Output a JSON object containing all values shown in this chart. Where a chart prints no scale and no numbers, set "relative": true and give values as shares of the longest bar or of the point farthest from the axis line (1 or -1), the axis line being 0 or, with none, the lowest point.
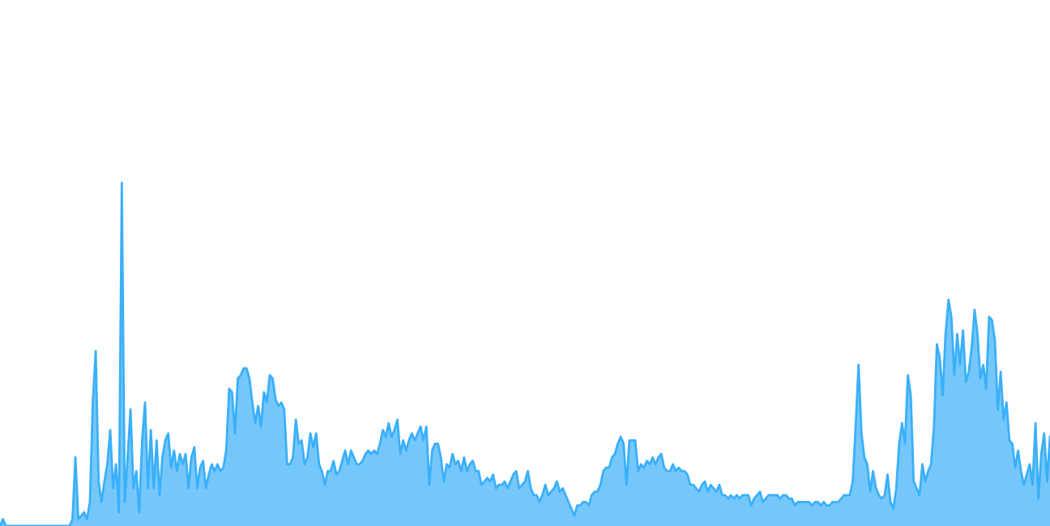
{
  "chart_data": {
    "type": "area",
    "relative": true,
    "categories": [
      null,
      null,
      null,
      null,
      null,
      null,
      null,
      null,
      null,
      null,
      null,
      null,
      null,
      null,
      null,
      null,
      null,
      null,
      null,
      null,
      null,
      null,
      null,
      null,
      null,
      null,
      null,
      null,
      null,
      null,
      null,
      null,
      null,
      null,
      null,
      null,
      null,
      null,
      null,
      null,
      null,
      null,
      null,
      null,
      null,
      null,
      null,
      null,
      null,
      null,
      null,
      null,
      null,
      null,
      null,
      null,
      null,
      null,
      null,
      null,
      null,
      null,
      null,
      null,
      null,
      null,
      null,
      null,
      null,
      null,
      null,
      null,
      null,
      null,
      null,
      null,
      null,
      null,
      null,
      null,
      null,
      null,
      null,
      null,
      null,
      null,
      null,
      null,
      null,
      null,
      null,
      null,
      null,
      null,
      null,
      null,
      null,
      null,
      null,
      null,
      null,
      null,
      null,
      null,
      null,
      null,
      null,
      null,
      null,
      null,
      null,
      null,
      null,
      null,
      null,
      null,
      null,
      null,
      null,
      null,
      null,
      null,
      null,
      null,
      null,
      null,
      null,
      null,
      null,
      null,
      null,
      null,
      null,
      null,
      null,
      null,
      null,
      null,
      null,
      null,
      null,
      null,
      null,
      null,
      null,
      null,
      null,
      null,
      null,
      null,
      null,
      null,
      null,
      null,
      null,
      null,
      null,
      null,
      null,
      null,
      null,
      null,
      null,
      null,
      null,
      null,
      null,
      null,
      null,
      null,
      null,
      null,
      null,
      null,
      null,
      null,
      null,
      null,
      null,
      null,
      null,
      null,
      null,
      null,
      null,
      null,
      null,
      null,
      null,
      null,
      null,
      null,
      null,
      null,
      null,
      null,
      null,
      null,
      null,
      null,
      null,
      null,
      null,
      null,
      null,
      null,
      null,
      null,
      null,
      null,
      null,
      null,
      null,
      null,
      null,
      null,
      null,
      null,
      null,
      null,
      null,
      null,
      null,
      null,
      null,
      null,
      null,
      null,
      null,
      null,
      null,
      null,
      null,
      null,
      null,
      null,
      null,
      null,
      null,
      null,
      null,
      null,
      null,
      null,
      null,
      null,
      null,
      null,
      null,
      null,
      null,
      null,
      null,
      null,
      null,
      null,
      null,
      null,
      null,
      null,
      null,
      null,
      null,
      null,
      null,
      null,
      null,
      null,
      null,
      null,
      null,
      null,
      null,
      null,
      null,
      null,
      null,
      null,
      null,
      null,
      null,
      null,
      null,
      null,
      null,
      null,
      null,
      null,
      null,
      null,
      null,
      null,
      null,
      null,
      null,
      null,
      null,
      null,
      null,
      null,
      null,
      null,
      null,
      null,
      null,
      null,
      null,
      null,
      null,
      null,
      null,
      null,
      null,
      null,
      null,
      null,
      null,
      null,
      null,
      null,
      null,
      null,
      null,
      null,
      null,
      null,
      null,
      null,
      null,
      null,
      null,
      null,
      null,
      null,
      null,
      null,
      null,
      null,
      null,
      null,
      null,
      null,
      null,
      null,
      null,
      null,
      null,
      null,
      null,
      null,
      null,
      null,
      null,
      null,
      null,
      null,
      null,
      null,
      null,
      null,
      null,
      null,
      null
    ],
    "series": [
      {
        "color": "#3aaffa",
        "values": [
          0,
          0.02,
          0,
          0,
          0,
          0,
          0,
          0,
          0,
          0,
          0,
          0,
          0,
          0,
          0,
          0,
          0,
          0,
          0,
          0,
          0,
          0,
          0,
          0,
          0,
          0.02,
          0.2,
          0.02,
          0.03,
          0.04,
          0.02,
          0.07,
          0.36,
          0.51,
          0.13,
          0.07,
          0.13,
          0.18,
          0.28,
          0.11,
          0.18,
          0.04,
          1,
          0.07,
          0.2,
          0.34,
          0.11,
          0.16,
          0.04,
          0.25,
          0.36,
          0.11,
          0.28,
          0.11,
          0.25,
          0.09,
          0.2,
          0.25,
          0.27,
          0.17,
          0.22,
          0.16,
          0.21,
          0.18,
          0.21,
          0.11,
          0.2,
          0.23,
          0.11,
          0.17,
          0.19,
          0.11,
          0.15,
          0.18,
          0.16,
          0.18,
          0.16,
          0.17,
          0.22,
          0.4,
          0.39,
          0.27,
          0.43,
          0.44,
          0.46,
          0.46,
          0.43,
          0.36,
          0.3,
          0.35,
          0.29,
          0.39,
          0.36,
          0.44,
          0.43,
          0.37,
          0.35,
          0.36,
          0.34,
          0.18,
          0.18,
          0.2,
          0.31,
          0.24,
          0.25,
          0.18,
          0.2,
          0.27,
          0.23,
          0.27,
          0.18,
          0.16,
          0.12,
          0.16,
          0.16,
          0.19,
          0.15,
          0.16,
          0.19,
          0.22,
          0.18,
          0.22,
          0.2,
          0.18,
          0.18,
          0.19,
          0.21,
          0.22,
          0.21,
          0.22,
          0.21,
          0.24,
          0.28,
          0.26,
          0.3,
          0.26,
          0.28,
          0.31,
          0.21,
          0.25,
          0.22,
          0.25,
          0.27,
          0.25,
          0.27,
          0.29,
          0.25,
          0.29,
          0.12,
          0.22,
          0.24,
          0.24,
          0.2,
          0.13,
          0.18,
          0.17,
          0.21,
          0.18,
          0.19,
          0.16,
          0.2,
          0.16,
          0.18,
          0.19,
          0.16,
          0.16,
          0.12,
          0.13,
          0.14,
          0.13,
          0.15,
          0.11,
          0.12,
          0.12,
          0.13,
          0.11,
          0.13,
          0.15,
          0.16,
          0.11,
          0.12,
          0.13,
          0.16,
          0.11,
          0.09,
          0.09,
          0.07,
          0.09,
          0.12,
          0.09,
          0.1,
          0.11,
          0.13,
          0.1,
          0.11,
          0.09,
          0.07,
          0.05,
          0.03,
          0.06,
          0.06,
          0.07,
          0.07,
          0.06,
          0.09,
          0.1,
          0.1,
          0.12,
          0.16,
          0.17,
          0.17,
          0.2,
          0.21,
          0.24,
          0.26,
          0.24,
          0.12,
          0.25,
          0.25,
          0.25,
          0.16,
          0.18,
          0.17,
          0.19,
          0.18,
          0.2,
          0.18,
          0.2,
          0.21,
          0.17,
          0.16,
          0.16,
          0.18,
          0.16,
          0.17,
          0.16,
          0.16,
          0.15,
          0.12,
          0.12,
          0.11,
          0.1,
          0.12,
          0.13,
          0.1,
          0.12,
          0.11,
          0.1,
          0.12,
          0.09,
          0.09,
          0.08,
          0.09,
          0.08,
          0.09,
          0.08,
          0.09,
          0.09,
          0.09,
          0.06,
          0.08,
          0.09,
          0.1,
          0.07,
          0.08,
          0.09,
          0.09,
          0.09,
          0.09,
          0.08,
          0.09,
          0.09,
          0.08,
          0.08,
          0.06,
          0.07,
          0.07,
          0.07,
          0.07,
          0.07,
          0.06,
          0.07,
          0.07,
          0.06,
          0.07,
          0.06,
          0.06,
          0.07,
          0.07,
          0.07,
          0.08,
          0.09,
          0.09,
          0.09,
          0.13,
          0.29,
          0.47,
          0.27,
          0.2,
          0.18,
          0.1,
          0.16,
          0.11,
          0.09,
          0.08,
          0.09,
          0.15,
          0.07,
          0.05,
          0.11,
          0.24,
          0.3,
          0.24,
          0.44,
          0.38,
          0.13,
          0.11,
          0.09,
          0.18,
          0.13,
          0.16,
          0.18,
          0.29,
          0.53,
          0.49,
          0.38,
          0.56,
          0.66,
          0.61,
          0.44,
          0.56,
          0.47,
          0.57,
          0.42,
          0.45,
          0.52,
          0.63,
          0.56,
          0.43,
          0.47,
          0.4,
          0.61,
          0.6,
          0.54,
          0.34,
          0.45,
          0.31,
          0.36,
          0.25,
          0.24,
          0.17,
          0.22,
          0.16,
          0.12,
          0.15,
          0.18,
          0.12,
          0.3,
          0.08,
          0.21,
          0.27,
          0.13,
          0.26
        ]
      }
    ]
  }
}
